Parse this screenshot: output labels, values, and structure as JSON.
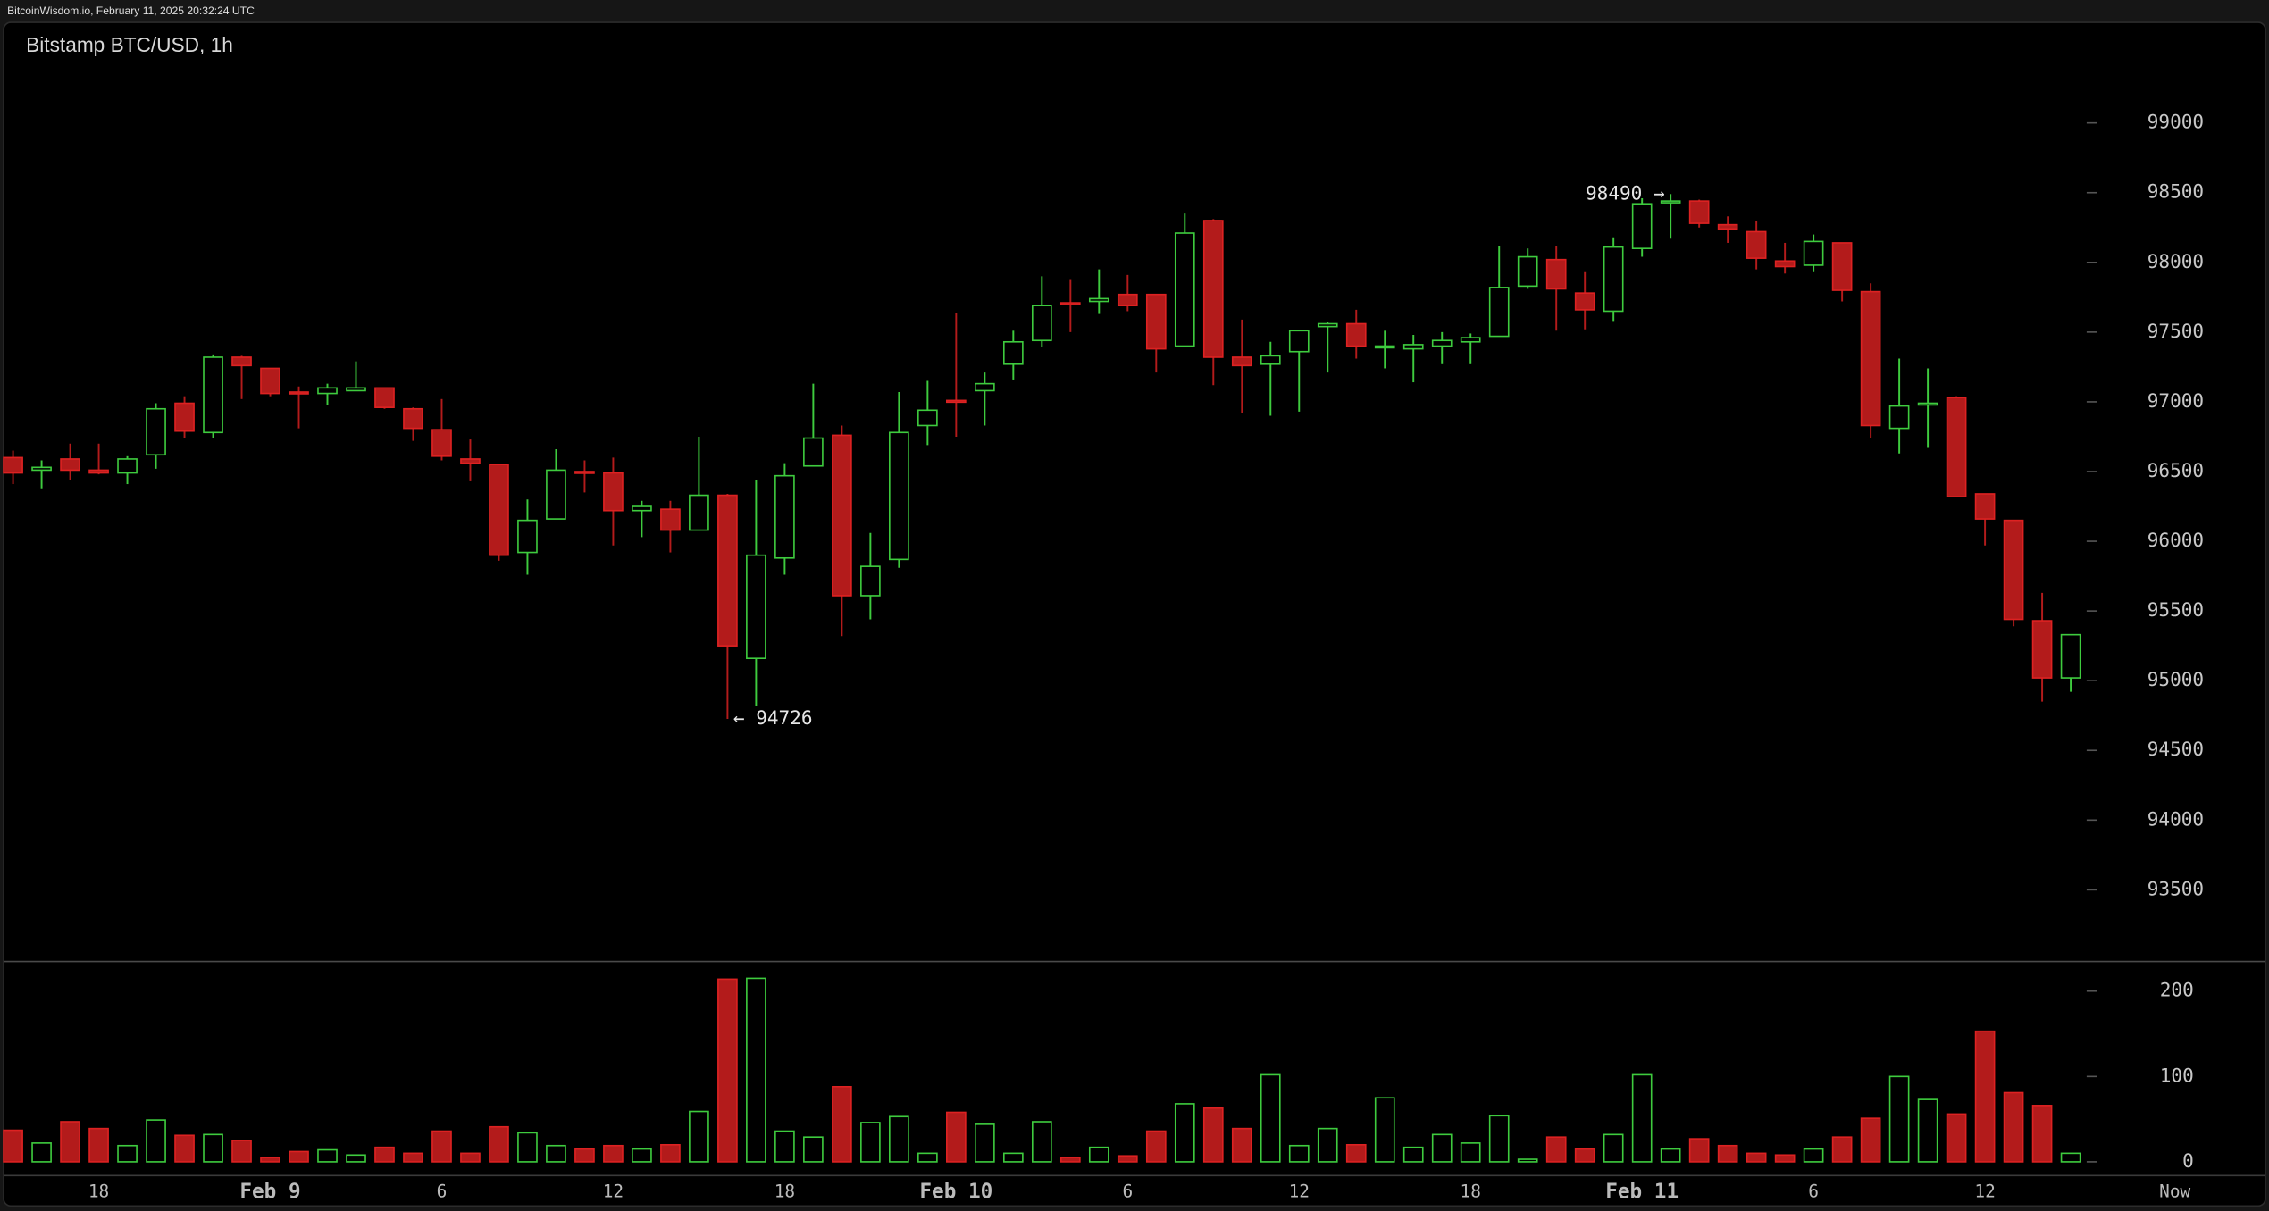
{
  "header": "BitcoinWisdom.io, February 11, 2025 20:32:24 UTC",
  "chart_data": {
    "type": "candlestick",
    "title": "Bitstamp BTC/USD, 1h",
    "categories": [
      null,
      null,
      null,
      "18",
      null,
      null,
      null,
      null,
      null,
      "Feb 9",
      null,
      null,
      null,
      null,
      null,
      "6",
      null,
      null,
      null,
      null,
      null,
      "12",
      null,
      null,
      null,
      null,
      null,
      "18",
      null,
      null,
      null,
      null,
      null,
      "Feb 10",
      null,
      null,
      null,
      null,
      null,
      "6",
      null,
      null,
      null,
      null,
      null,
      "12",
      null,
      null,
      null,
      null,
      null,
      "18",
      null,
      null,
      null,
      null,
      null,
      "Feb 11",
      null,
      null,
      null,
      null,
      null,
      "6",
      null,
      null,
      null,
      null,
      null,
      "12",
      null,
      null,
      null
    ],
    "open": [
      96600,
      96510,
      96590,
      96510,
      96490,
      96620,
      96990,
      96780,
      97320,
      97240,
      97070,
      97060,
      97080,
      97100,
      96950,
      96800,
      96590,
      96550,
      95920,
      96160,
      96500,
      96490,
      96220,
      96230,
      96080,
      96330,
      95160,
      95880,
      96540,
      96760,
      95610,
      95870,
      96830,
      97010,
      97080,
      97270,
      97440,
      97710,
      97720,
      97770,
      97770,
      97400,
      98300,
      97320,
      97270,
      97360,
      97540,
      97560,
      97390,
      97380,
      97400,
      97430,
      97470,
      97830,
      98020,
      97780,
      97650,
      98100,
      98430,
      98440,
      98270,
      98220,
      98010,
      97980,
      98140,
      97790,
      96810,
      96980,
      97030,
      96340,
      96150,
      95430,
      95020
    ],
    "high": [
      96650,
      96580,
      96700,
      96700,
      96610,
      96990,
      97040,
      97340,
      97330,
      97240,
      97110,
      97130,
      97290,
      97100,
      96960,
      97020,
      96730,
      96550,
      96300,
      96660,
      96580,
      96600,
      96290,
      96290,
      96750,
      96340,
      96440,
      96560,
      97130,
      96830,
      96060,
      97070,
      97150,
      97640,
      97210,
      97510,
      97900,
      97880,
      97950,
      97910,
      97770,
      98350,
      98310,
      97590,
      97430,
      97510,
      97570,
      97660,
      97510,
      97480,
      97500,
      97490,
      98120,
      98100,
      98120,
      97930,
      98180,
      98460,
      98490,
      98450,
      98330,
      98300,
      98140,
      98200,
      98140,
      97850,
      97310,
      97240,
      97040,
      96340,
      96150,
      95630,
      95330
    ],
    "low": [
      96410,
      96380,
      96440,
      96480,
      96410,
      96520,
      96740,
      96740,
      97020,
      97040,
      96810,
      96980,
      97080,
      96950,
      96720,
      96580,
      96430,
      95860,
      95760,
      96160,
      96350,
      95970,
      96030,
      95920,
      96080,
      94726,
      94820,
      95760,
      96540,
      95320,
      95440,
      95810,
      96690,
      96750,
      96830,
      97160,
      97390,
      97500,
      97630,
      97650,
      97210,
      97390,
      97120,
      96920,
      96900,
      96930,
      97210,
      97310,
      97240,
      97140,
      97270,
      97270,
      97470,
      97810,
      97510,
      97520,
      97580,
      98040,
      98170,
      98250,
      98140,
      97950,
      97920,
      97930,
      97720,
      96740,
      96630,
      96670,
      96320,
      95970,
      95390,
      94850,
      94920
    ],
    "close": [
      96490,
      96530,
      96510,
      96490,
      96590,
      96950,
      96790,
      97320,
      97260,
      97060,
      97060,
      97100,
      97100,
      96960,
      96810,
      96610,
      96560,
      95900,
      96150,
      96510,
      96490,
      96220,
      96250,
      96080,
      96330,
      95250,
      95900,
      96470,
      96740,
      95610,
      95820,
      96780,
      96940,
      97000,
      97130,
      97430,
      97690,
      97700,
      97740,
      97690,
      97380,
      98210,
      97320,
      97260,
      97330,
      97510,
      97560,
      97400,
      97400,
      97410,
      97440,
      97460,
      97820,
      98040,
      97810,
      97660,
      98110,
      98420,
      98440,
      98280,
      98240,
      98030,
      97970,
      98150,
      97800,
      96830,
      96970,
      96990,
      96320,
      96160,
      95440,
      95020,
      95330
    ],
    "colors": {
      "up": "#3ecb3e",
      "down": "#b31b1b"
    },
    "ylim": [
      93000,
      99500
    ],
    "yticks": [
      93500,
      94000,
      94500,
      95000,
      95500,
      96000,
      96500,
      97000,
      97500,
      98000,
      98500,
      99000
    ],
    "annotations": [
      {
        "value": 94726,
        "label": "← 94726"
      },
      {
        "value": 98490,
        "label": "98490 →"
      }
    ],
    "volume": {
      "values": [
        37,
        22,
        47,
        39,
        19,
        49,
        31,
        32,
        25,
        5,
        12,
        14,
        8,
        17,
        10,
        36,
        10,
        41,
        34,
        19,
        15,
        19,
        15,
        20,
        59,
        214,
        215,
        36,
        29,
        88,
        46,
        53,
        10,
        58,
        44,
        10,
        47,
        5,
        17,
        7,
        36,
        68,
        63,
        39,
        102,
        19,
        39,
        20,
        75,
        17,
        32,
        22,
        54,
        3,
        29,
        15,
        32,
        102,
        15,
        27,
        19,
        10,
        8,
        15,
        29,
        51,
        100,
        73,
        56,
        153,
        81,
        66,
        10
      ],
      "ylim": [
        0,
        230
      ],
      "yticks": [
        0,
        100,
        200
      ]
    },
    "now_label": "Now"
  }
}
